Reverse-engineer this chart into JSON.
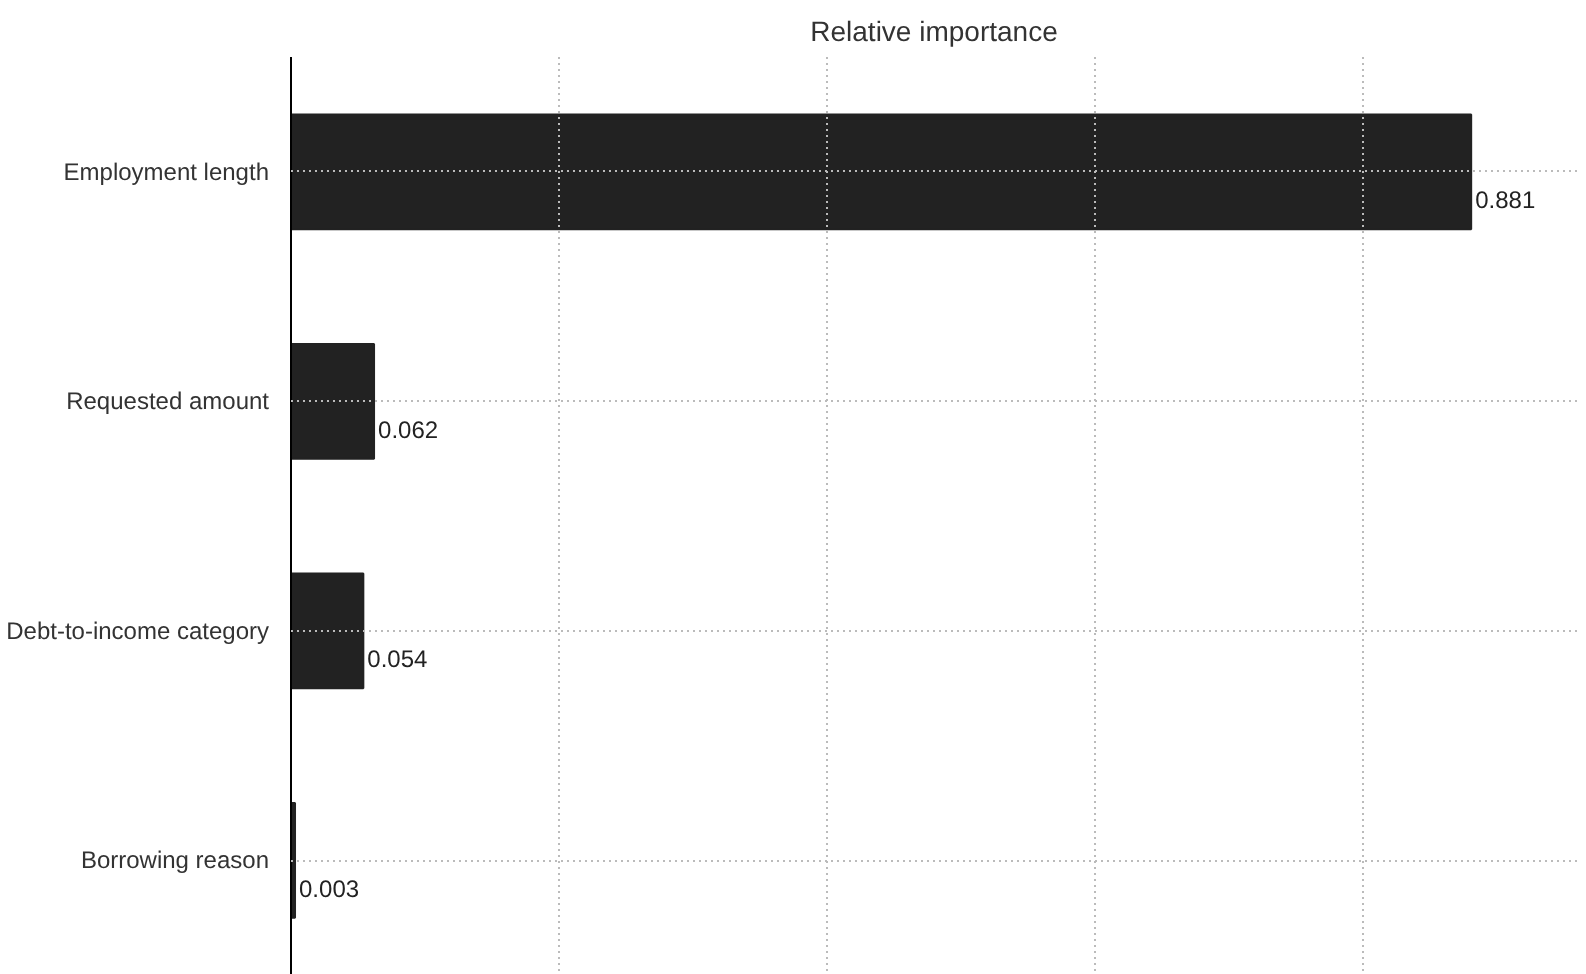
{
  "chart_data": {
    "type": "bar",
    "orientation": "horizontal",
    "title": "Relative importance",
    "categories": [
      "Employment length",
      "Requested amount",
      "Debt-to-income category",
      "Borrowing reason"
    ],
    "values": [
      0.881,
      0.062,
      0.054,
      0.003
    ],
    "color": "#222222",
    "xlim": [
      0,
      0.96
    ],
    "xticks": [
      {
        "value": 0,
        "label": null
      },
      {
        "value": 0.2,
        "label": null
      },
      {
        "value": 0.4,
        "label": null
      },
      {
        "value": 0.6,
        "label": null
      },
      {
        "value": 0.8,
        "label": null
      }
    ],
    "tick_labels": "y",
    "grid": true,
    "data_labels": true
  }
}
